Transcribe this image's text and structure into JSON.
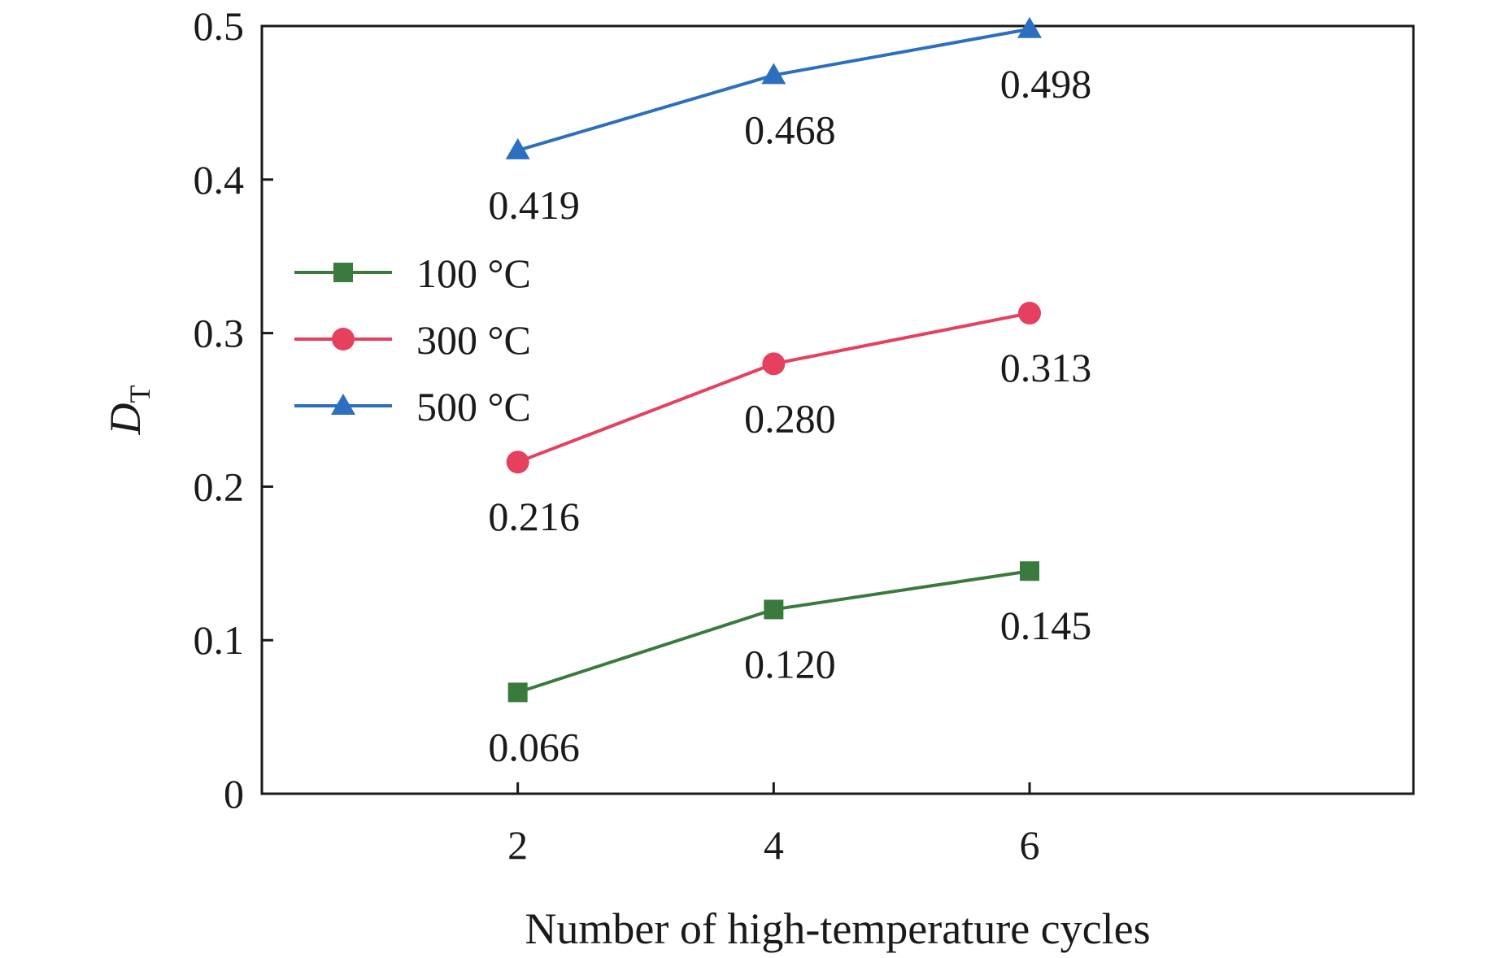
{
  "chart_data": {
    "type": "line",
    "xlabel": "Number of high-temperature cycles",
    "ylabel": "D",
    "ylabel_subscript": "T",
    "x": [
      2,
      4,
      6
    ],
    "xlim": [
      0,
      9
    ],
    "ylim": [
      0,
      0.5
    ],
    "xticks": [
      2,
      4,
      6
    ],
    "yticks": [
      0,
      0.1,
      0.2,
      0.3,
      0.4,
      0.5
    ],
    "ytick_labels": [
      "0",
      "0.1",
      "0.2",
      "0.3",
      "0.4",
      "0.5"
    ],
    "grid": false,
    "legend_position": "center-left",
    "series": [
      {
        "name": "100 °C",
        "values": [
          0.066,
          0.12,
          0.145
        ],
        "labels": [
          "0.066",
          "0.120",
          "0.145"
        ],
        "color": "#3a7a3c",
        "marker": "square"
      },
      {
        "name": "300 °C",
        "values": [
          0.216,
          0.28,
          0.313
        ],
        "labels": [
          "0.216",
          "0.280",
          "0.313"
        ],
        "color": "#e5405e",
        "marker": "circle"
      },
      {
        "name": "500 °C",
        "values": [
          0.419,
          0.468,
          0.498
        ],
        "labels": [
          "0.419",
          "0.468",
          "0.498"
        ],
        "color": "#2c6fbf",
        "marker": "triangle"
      }
    ]
  }
}
